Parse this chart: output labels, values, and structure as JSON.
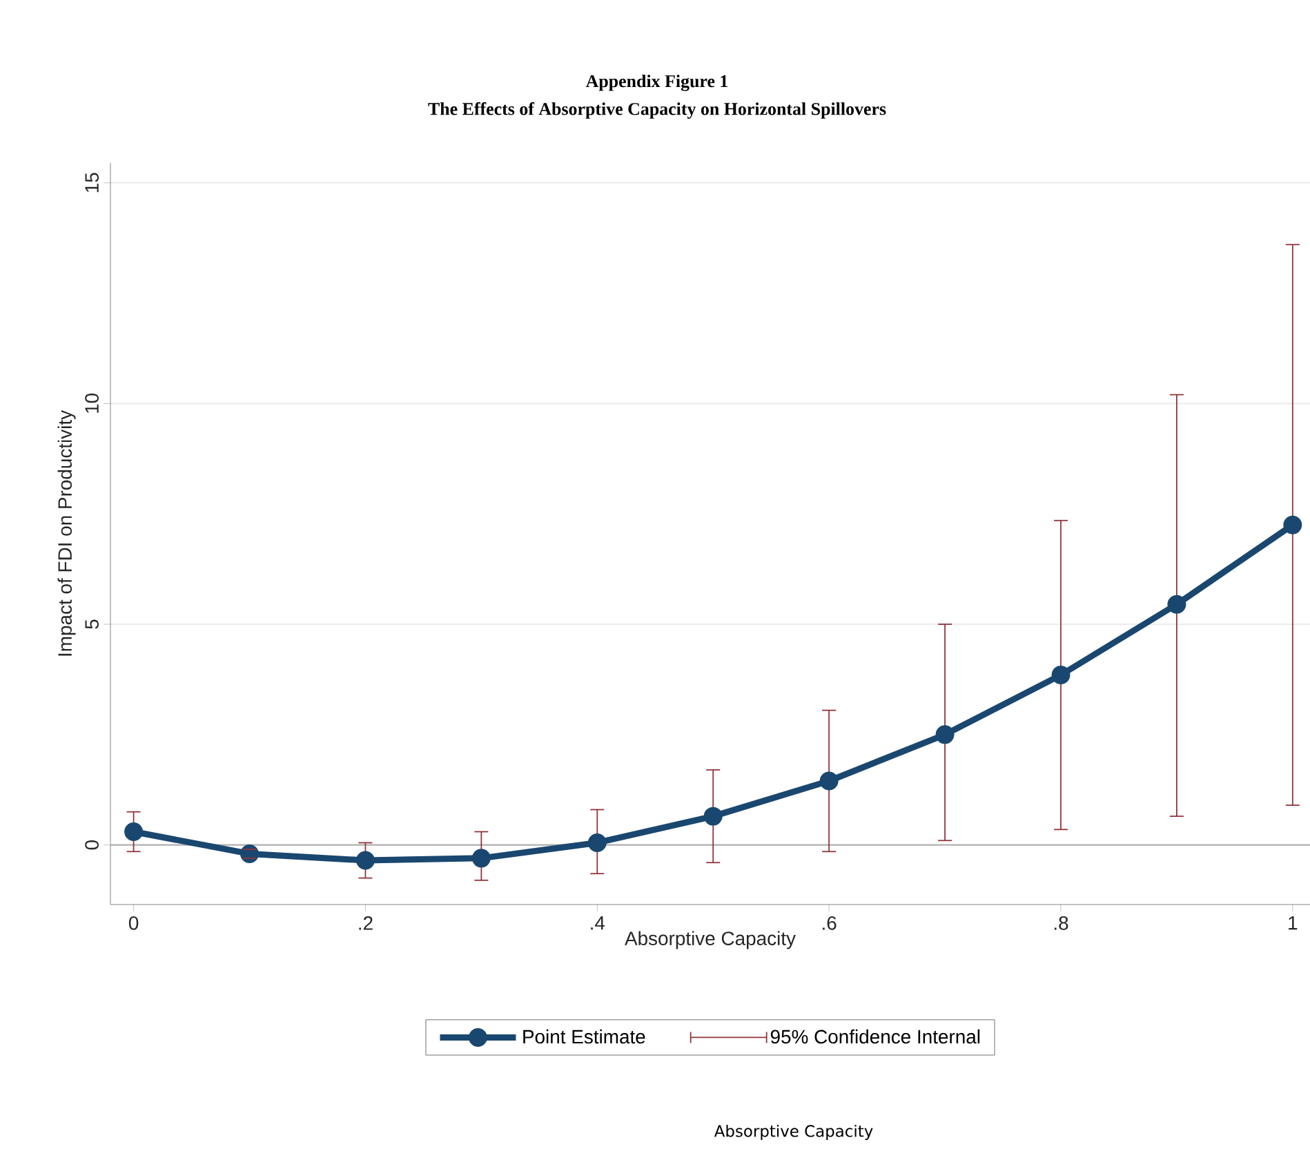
{
  "chart_data": {
    "type": "line",
    "title": "Appendix Figure 1",
    "subtitle": "The Effects of Absorptive Capacity on Horizontal Spillovers",
    "xlabel": "Absorptive Capacity",
    "ylabel": "Impact of FDI on Productivity",
    "x": [
      0,
      0.1,
      0.2,
      0.3,
      0.4,
      0.5,
      0.6,
      0.7,
      0.8,
      0.9,
      1
    ],
    "xlim": [
      -0.02,
      1.015
    ],
    "ylim": [
      -1.35,
      15.45
    ],
    "xticks": [
      {
        "value": 0,
        "label": "0"
      },
      {
        "value": 0.2,
        "label": ".2"
      },
      {
        "value": 0.4,
        "label": ".4"
      },
      {
        "value": 0.6,
        "label": ".6"
      },
      {
        "value": 0.8,
        "label": ".8"
      },
      {
        "value": 1,
        "label": "1"
      }
    ],
    "yticks": [
      0,
      5,
      10,
      15
    ],
    "grid": "y",
    "legend": "bottom",
    "series": [
      {
        "name": "Point Estimate",
        "marker": "circle",
        "line_style": "solid",
        "color": "#1a476f",
        "values": [
          0.3,
          -0.2,
          -0.35,
          -0.3,
          0.05,
          0.65,
          1.45,
          2.5,
          3.85,
          5.45,
          7.25
        ],
        "errors": [
          [
            -0.15,
            0.75
          ],
          [
            -0.3,
            -0.1
          ],
          [
            -0.75,
            0.05
          ],
          [
            -0.8,
            0.3
          ],
          [
            -0.65,
            0.8
          ],
          [
            -0.4,
            1.7
          ],
          [
            -0.15,
            3.05
          ],
          [
            0.1,
            5.0
          ],
          [
            0.35,
            7.35
          ],
          [
            0.65,
            10.2
          ],
          [
            0.9,
            13.6
          ]
        ]
      },
      {
        "name": "95% Confidence Internal",
        "color": "#90353b",
        "values": [
          null,
          null,
          null,
          null,
          null,
          null,
          null,
          null,
          null,
          null,
          null
        ]
      }
    ],
    "annotations": [
      "Absorptive Capacity"
    ]
  }
}
